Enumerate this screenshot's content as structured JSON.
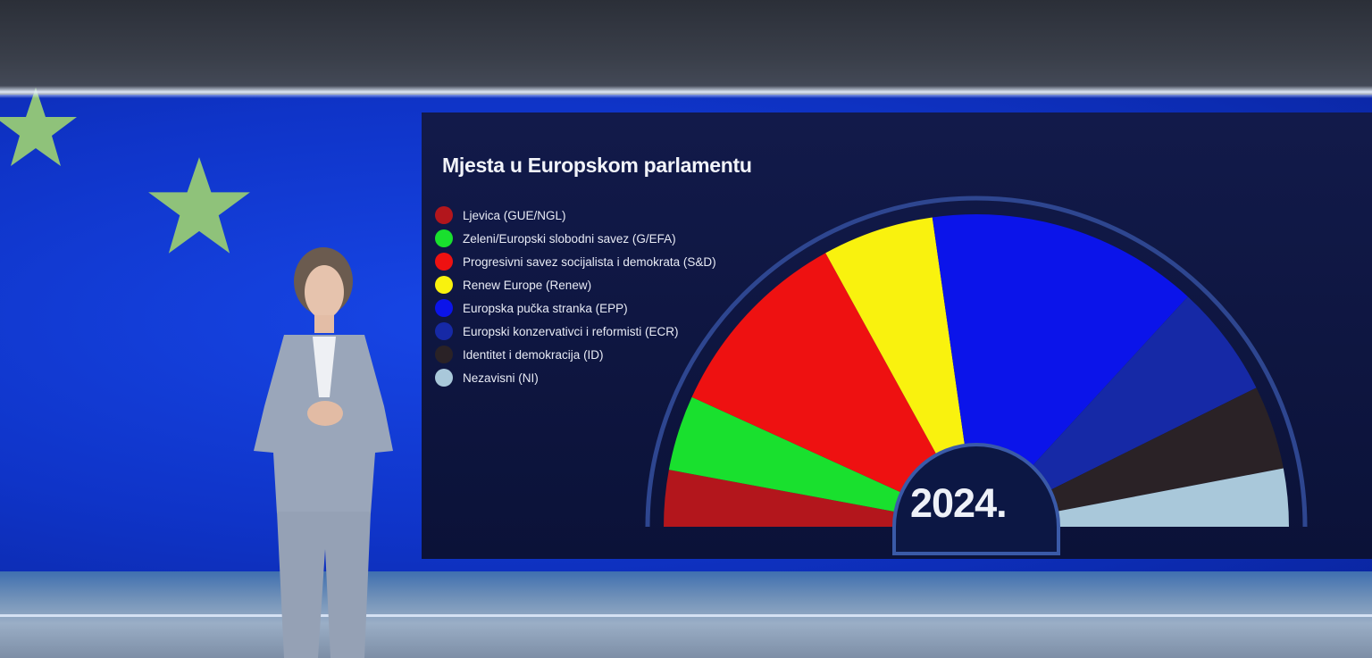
{
  "chart_data": {
    "type": "pie",
    "title": "Mjesta u Europskom parlamentu",
    "year": "2024.",
    "series": [
      {
        "name": "Ljevica (GUE/NGL)",
        "color": "#b3161c",
        "value": 39
      },
      {
        "name": "Zeleni/Europski slobodni savez (G/EFA)",
        "color": "#19e02e",
        "value": 52
      },
      {
        "name": "Progresivni savez socijalista i demokrata (S&D)",
        "color": "#ee1111",
        "value": 136
      },
      {
        "name": "Renew Europe (Renew)",
        "color": "#f9f20e",
        "value": 77
      },
      {
        "name": "Europska pučka stranka (EPP)",
        "color": "#0b14ea",
        "value": 188
      },
      {
        "name": "Europski konzervativci i reformisti (ECR)",
        "color": "#1629a6",
        "value": 78
      },
      {
        "name": "Identitet i demokracija (ID)",
        "color": "#2a2226",
        "value": 58
      },
      {
        "name": "Nezavisni (NI)",
        "color": "#a9c8da",
        "value": 40
      }
    ]
  }
}
